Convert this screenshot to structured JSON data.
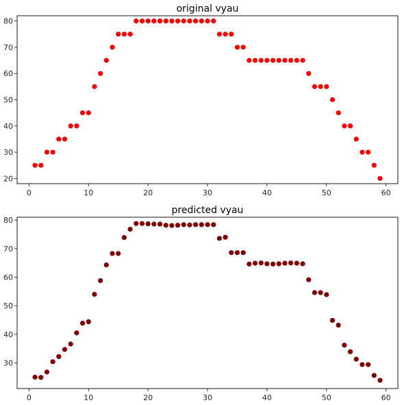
{
  "chart_data": [
    {
      "type": "scatter",
      "title": "original vyau",
      "xlabel": "",
      "ylabel": "",
      "xlim": [
        -2,
        62
      ],
      "ylim": [
        18,
        82
      ],
      "xticks": [
        0,
        10,
        20,
        30,
        40,
        50,
        60
      ],
      "yticks": [
        20,
        30,
        40,
        50,
        60,
        70,
        80
      ],
      "grid": false,
      "color": "#ff0000",
      "series": [
        {
          "x": [
            1,
            2,
            3,
            4,
            5,
            6,
            7,
            8,
            9,
            10,
            11,
            12,
            13,
            14,
            15,
            16,
            17,
            18,
            19,
            20,
            21,
            22,
            23,
            24,
            25,
            26,
            27,
            28,
            29,
            30,
            31,
            32,
            33,
            34,
            35,
            36,
            37,
            38,
            39,
            40,
            41,
            42,
            43,
            44,
            45,
            46,
            47,
            48,
            49,
            50,
            51,
            52,
            53,
            54,
            55,
            56,
            57,
            58,
            59
          ],
          "y": [
            25,
            25,
            30,
            30,
            35,
            35,
            40,
            40,
            45,
            45,
            55,
            60,
            65,
            70,
            75,
            75,
            75,
            80,
            80,
            80,
            80,
            80,
            80,
            80,
            80,
            80,
            80,
            80,
            80,
            80,
            80,
            75,
            75,
            75,
            70,
            70,
            65,
            65,
            65,
            65,
            65,
            65,
            65,
            65,
            65,
            65,
            60,
            55,
            55,
            55,
            50,
            45,
            40,
            40,
            35,
            30,
            30,
            25,
            20
          ]
        }
      ]
    },
    {
      "type": "scatter",
      "title": "predicted vyau",
      "xlabel": "",
      "ylabel": "",
      "xlim": [
        -2,
        62
      ],
      "ylim": [
        21,
        81
      ],
      "xticks": [
        0,
        10,
        20,
        30,
        40,
        50,
        60
      ],
      "yticks": [
        30,
        40,
        50,
        60,
        70,
        80
      ],
      "grid": false,
      "color": "#800000",
      "series": [
        {
          "x": [
            1,
            2,
            3,
            4,
            5,
            6,
            7,
            8,
            9,
            10,
            11,
            12,
            13,
            14,
            15,
            16,
            17,
            18,
            19,
            20,
            21,
            22,
            23,
            24,
            25,
            26,
            27,
            28,
            29,
            30,
            31,
            32,
            33,
            34,
            35,
            36,
            37,
            38,
            39,
            40,
            41,
            42,
            43,
            44,
            45,
            46,
            47,
            48,
            49,
            50,
            51,
            52,
            53,
            54,
            55,
            56,
            57,
            58,
            59
          ],
          "y": [
            25,
            24.9,
            26.8,
            30.4,
            32.2,
            34.7,
            36.6,
            40.5,
            43.9,
            44.4,
            54,
            58.8,
            64.3,
            68.3,
            68.3,
            73.9,
            76.8,
            78.8,
            78.8,
            78.7,
            78.6,
            78.6,
            78.2,
            78.1,
            78.2,
            78.4,
            78.3,
            78.4,
            78.4,
            78.4,
            78.4,
            73.6,
            74,
            68.6,
            68.6,
            68.6,
            64.6,
            64.9,
            65,
            64.7,
            64.6,
            64.7,
            64.9,
            65,
            64.9,
            64.7,
            59.1,
            54.6,
            54.6,
            53.9,
            44.9,
            43.2,
            36.2,
            33.9,
            31.3,
            29.4,
            29.4,
            25.6,
            23.9
          ]
        }
      ]
    }
  ]
}
